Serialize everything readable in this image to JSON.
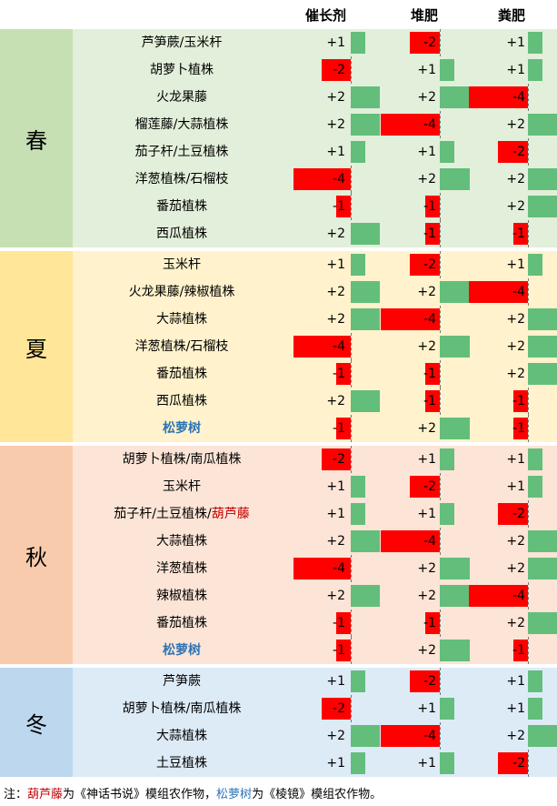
{
  "columns": [
    "催长剂",
    "堆肥",
    "粪肥"
  ],
  "colors": {
    "positive": "#63be7b",
    "negative": "#ff0000",
    "highlight_red": "#c00000",
    "highlight_blue": "#2e74b5"
  },
  "seasons": [
    {
      "name": "春",
      "bg": "#e2efda",
      "label_bg": "#c6e0b4",
      "rows": [
        {
          "crop": "芦笋蕨/玉米杆",
          "values": [
            1,
            -2,
            1
          ]
        },
        {
          "crop": "胡萝卜植株",
          "values": [
            -2,
            1,
            1
          ]
        },
        {
          "crop": "火龙果藤",
          "values": [
            2,
            2,
            -4
          ]
        },
        {
          "crop": "榴莲藤/大蒜植株",
          "values": [
            2,
            -4,
            2
          ]
        },
        {
          "crop": "茄子杆/土豆植株",
          "values": [
            1,
            1,
            -2
          ]
        },
        {
          "crop": "洋葱植株/石榴枝",
          "values": [
            -4,
            2,
            2
          ]
        },
        {
          "crop": "番茄植株",
          "values": [
            -1,
            -1,
            2
          ]
        },
        {
          "crop": "西瓜植株",
          "values": [
            2,
            -1,
            -1
          ]
        }
      ]
    },
    {
      "name": "夏",
      "bg": "#fff2cc",
      "label_bg": "#ffe699",
      "rows": [
        {
          "crop": "玉米杆",
          "values": [
            1,
            -2,
            1
          ]
        },
        {
          "crop": "火龙果藤/辣椒植株",
          "values": [
            2,
            2,
            -4
          ]
        },
        {
          "crop": "大蒜植株",
          "values": [
            2,
            -4,
            2
          ]
        },
        {
          "crop": "洋葱植株/石榴枝",
          "values": [
            -4,
            2,
            2
          ]
        },
        {
          "crop": "番茄植株",
          "values": [
            -1,
            -1,
            2
          ]
        },
        {
          "crop": "西瓜植株",
          "values": [
            2,
            -1,
            -1
          ]
        },
        {
          "crop": "松萝树",
          "crop_style": "blue",
          "values": [
            -1,
            2,
            -1
          ]
        }
      ]
    },
    {
      "name": "秋",
      "bg": "#fce4d6",
      "label_bg": "#f8cbad",
      "rows": [
        {
          "crop": "胡萝卜植株/南瓜植株",
          "values": [
            -2,
            1,
            1
          ]
        },
        {
          "crop": "玉米杆",
          "values": [
            1,
            -2,
            1
          ]
        },
        {
          "crop": "茄子杆/土豆植株/",
          "crop_extra": "葫芦藤",
          "values": [
            1,
            1,
            -2
          ]
        },
        {
          "crop": "大蒜植株",
          "values": [
            2,
            -4,
            2
          ]
        },
        {
          "crop": "洋葱植株",
          "values": [
            -4,
            2,
            2
          ]
        },
        {
          "crop": "辣椒植株",
          "values": [
            2,
            2,
            -4
          ]
        },
        {
          "crop": "番茄植株",
          "values": [
            -1,
            -1,
            2
          ]
        },
        {
          "crop": "松萝树",
          "crop_style": "blue",
          "values": [
            -1,
            2,
            -1
          ]
        }
      ]
    },
    {
      "name": "冬",
      "bg": "#ddebf7",
      "label_bg": "#bdd7ee",
      "rows": [
        {
          "crop": "芦笋蕨",
          "values": [
            1,
            -2,
            1
          ]
        },
        {
          "crop": "胡萝卜植株/南瓜植株",
          "values": [
            -2,
            1,
            1
          ]
        },
        {
          "crop": "大蒜植株",
          "values": [
            2,
            -4,
            2
          ]
        },
        {
          "crop": "土豆植株",
          "values": [
            1,
            1,
            -2
          ]
        }
      ]
    }
  ],
  "note": {
    "prefix": "注：",
    "item1": "葫芦藤",
    "text1": "为《神话书说》模组农作物，",
    "item2": "松萝树",
    "text2": "为《棱镜》模组农作物。"
  }
}
